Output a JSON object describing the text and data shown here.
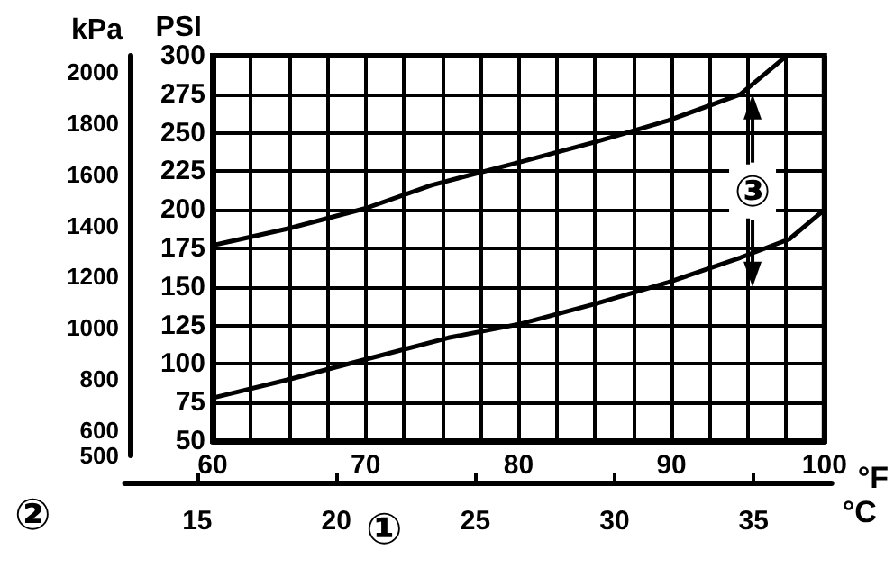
{
  "chart_data": {
    "type": "line",
    "xlabel": "°F",
    "ylabel": "PSI",
    "y2label": "kPa",
    "x2label": "°C",
    "series": [
      {
        "color": "#000000",
        "x": [
          60,
          65,
          70,
          74.3,
          80.1,
          85,
          89.8,
          94.5,
          97.3
        ],
        "values": [
          177,
          188,
          201,
          216,
          231,
          244,
          258,
          275,
          298
        ]
      },
      {
        "color": "#000000",
        "x": [
          60,
          65,
          70,
          75.4,
          80.1,
          85,
          89.8,
          94.5,
          97.7,
          100
        ],
        "values": [
          78,
          90,
          103,
          117,
          126,
          139,
          153,
          169,
          181,
          200
        ]
      }
    ],
    "xlim": [
      60,
      100
    ],
    "xticks": [
      60,
      {
        "value": 62.5,
        "label": null
      },
      {
        "value": 65,
        "label": null
      },
      {
        "value": 67.5,
        "label": null
      },
      70,
      {
        "value": 72.5,
        "label": null
      },
      {
        "value": 75,
        "label": null
      },
      {
        "value": 77.5,
        "label": null
      },
      80,
      {
        "value": 82.5,
        "label": null
      },
      {
        "value": 85,
        "label": null
      },
      {
        "value": 87.5,
        "label": null
      },
      90,
      {
        "value": 92.5,
        "label": null
      },
      {
        "value": 95,
        "label": null
      },
      {
        "value": 97.5,
        "label": null
      },
      100
    ],
    "ylim": [
      50,
      300
    ],
    "yticks": [
      50,
      75,
      100,
      125,
      150,
      175,
      200,
      225,
      250,
      275,
      300
    ],
    "y2lim": [
      500,
      2065
    ],
    "y2ticks": [
      500,
      600,
      800,
      1000,
      1200,
      1400,
      1600,
      1800,
      2000
    ],
    "x2lim": [
      12.4,
      37.8
    ],
    "x2ticks": [
      15,
      20,
      25,
      30,
      35
    ],
    "grid": true,
    "marker": "none",
    "line_style": "solid",
    "annotations": [
      "②",
      "①",
      {
        "text": "③",
        "x": 95.3,
        "y": 212
      }
    ]
  }
}
